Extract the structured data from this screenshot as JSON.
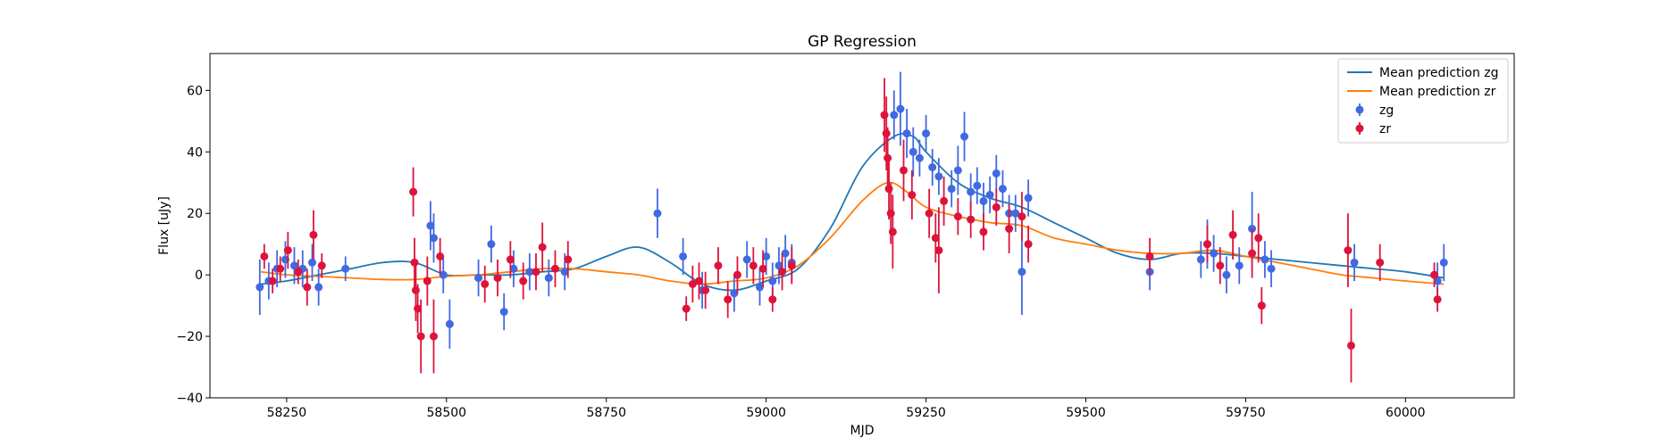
{
  "chart_data": {
    "type": "scatter",
    "title": "GP Regression",
    "xlabel": "MJD",
    "ylabel": "Flux [uJy]",
    "xlim": [
      58130,
      60170
    ],
    "ylim": [
      -40,
      72
    ],
    "xticks": [
      58250,
      58500,
      58750,
      59000,
      59250,
      59500,
      59750,
      60000
    ],
    "yticks": [
      -40,
      -20,
      0,
      20,
      40,
      60
    ],
    "legend_position": "top-right",
    "legend": [
      {
        "label": "Mean prediction zg",
        "kind": "line",
        "color": "#1f77b4"
      },
      {
        "label": "Mean prediction zr",
        "kind": "line",
        "color": "#ff7f0e"
      },
      {
        "label": "zg",
        "kind": "errorbar",
        "color": "#4169e1"
      },
      {
        "label": "zr",
        "kind": "errorbar",
        "color": "#dc143c"
      }
    ],
    "lines": [
      {
        "name": "Mean prediction zg",
        "color": "#1f77b4",
        "x": [
          58210,
          58250,
          58300,
          58350,
          58400,
          58450,
          58500,
          58550,
          58600,
          58650,
          58700,
          58750,
          58800,
          58850,
          58900,
          58950,
          59000,
          59050,
          59100,
          59150,
          59200,
          59230,
          59250,
          59300,
          59350,
          59400,
          59450,
          59500,
          59550,
          59600,
          59650,
          59700,
          59750,
          59800,
          59850,
          59900,
          59950,
          60000,
          60060
        ],
        "y": [
          -3,
          -2,
          0,
          2,
          4,
          4,
          0,
          0,
          0,
          1,
          2,
          6,
          9,
          4,
          -3,
          -5,
          -2,
          2,
          15,
          35,
          45,
          45,
          40,
          30,
          25,
          22,
          17,
          12,
          7,
          5,
          7,
          7,
          6,
          5,
          4,
          3,
          2,
          1,
          -1
        ]
      },
      {
        "name": "Mean prediction zr",
        "color": "#ff7f0e",
        "x": [
          58210,
          58250,
          58300,
          58350,
          58400,
          58450,
          58500,
          58550,
          58600,
          58650,
          58700,
          58750,
          58800,
          58850,
          58900,
          58950,
          59000,
          59050,
          59100,
          59150,
          59190,
          59220,
          59250,
          59300,
          59350,
          59400,
          59450,
          59500,
          59550,
          59600,
          59650,
          59700,
          59750,
          59800,
          59850,
          59900,
          59950,
          60000,
          60060
        ],
        "y": [
          1,
          0,
          -0.5,
          -1,
          -1.5,
          -1.5,
          -0.5,
          0,
          1,
          2,
          2,
          1,
          0,
          -2,
          -3,
          -2,
          -1,
          3,
          12,
          24,
          30,
          27,
          22,
          19,
          17,
          16,
          12,
          10,
          8,
          7,
          7,
          8,
          6,
          4,
          2,
          0,
          -1,
          -2,
          -3
        ]
      }
    ],
    "series": [
      {
        "name": "zg",
        "color": "#4169e1",
        "x": [
          58208,
          58222,
          58235,
          58248,
          58262,
          58275,
          58290,
          58300,
          58342,
          58475,
          58480,
          58495,
          58505,
          58550,
          58570,
          58590,
          58605,
          58630,
          58660,
          58685,
          58830,
          58870,
          58900,
          58950,
          58970,
          58990,
          59000,
          59010,
          59020,
          59030,
          59040,
          59200,
          59210,
          59220,
          59230,
          59240,
          59250,
          59260,
          59270,
          59290,
          59300,
          59310,
          59320,
          59330,
          59340,
          59350,
          59360,
          59370,
          59380,
          59390,
          59400,
          59410,
          59600,
          59680,
          59690,
          59700,
          59720,
          59740,
          59760,
          59780,
          59790,
          59920,
          60050,
          60060
        ],
        "y": [
          -4,
          -2,
          2,
          5,
          3,
          2,
          4,
          -4,
          2,
          16,
          12,
          0,
          -16,
          -1,
          10,
          -12,
          2,
          1,
          -1,
          1,
          20,
          6,
          -5,
          -6,
          5,
          -4,
          6,
          -2,
          3,
          7,
          4,
          52,
          54,
          46,
          40,
          38,
          46,
          35,
          32,
          28,
          34,
          45,
          27,
          29,
          24,
          26,
          33,
          28,
          20,
          20,
          1,
          25,
          1,
          5,
          10,
          7,
          0,
          3,
          15,
          5,
          2,
          4,
          -2,
          4
        ],
        "err": [
          9,
          6,
          6,
          6,
          6,
          6,
          6,
          6,
          4,
          8,
          8,
          6,
          8,
          6,
          6,
          6,
          6,
          6,
          6,
          6,
          8,
          6,
          6,
          6,
          6,
          6,
          6,
          6,
          6,
          6,
          6,
          8,
          12,
          8,
          8,
          6,
          6,
          6,
          6,
          6,
          8,
          8,
          6,
          6,
          6,
          6,
          6,
          6,
          6,
          6,
          14,
          6,
          6,
          6,
          8,
          6,
          6,
          6,
          12,
          6,
          6,
          6,
          6,
          6
        ]
      },
      {
        "name": "zr",
        "color": "#dc143c",
        "x": [
          58215,
          58228,
          58240,
          58252,
          58268,
          58282,
          58292,
          58305,
          58448,
          58450,
          58452,
          58455,
          58460,
          58470,
          58480,
          58490,
          58560,
          58580,
          58600,
          58620,
          58640,
          58650,
          58670,
          58690,
          58875,
          58885,
          58895,
          58905,
          58925,
          58940,
          58955,
          58980,
          58995,
          59010,
          59025,
          59040,
          59185,
          59188,
          59190,
          59192,
          59195,
          59198,
          59215,
          59228,
          59255,
          59265,
          59270,
          59278,
          59300,
          59320,
          59340,
          59360,
          59380,
          59400,
          59410,
          59600,
          59690,
          59710,
          59730,
          59760,
          59770,
          59775,
          59910,
          59915,
          59960,
          60045,
          60050
        ],
        "y": [
          6,
          -2,
          2,
          8,
          1,
          -4,
          13,
          3,
          27,
          4,
          -5,
          -11,
          -20,
          -2,
          -20,
          6,
          -3,
          -1,
          5,
          -2,
          1,
          9,
          2,
          5,
          -11,
          -3,
          -2,
          -5,
          3,
          -8,
          0,
          3,
          2,
          -8,
          1,
          3,
          52,
          46,
          38,
          28,
          20,
          14,
          34,
          26,
          20,
          12,
          8,
          24,
          19,
          18,
          14,
          22,
          15,
          19,
          10,
          6,
          10,
          3,
          13,
          7,
          12,
          -10,
          8,
          -23,
          4,
          0,
          -8
        ],
        "err": [
          4,
          4,
          4,
          6,
          4,
          6,
          8,
          4,
          8,
          8,
          10,
          8,
          12,
          8,
          12,
          6,
          6,
          6,
          6,
          6,
          6,
          8,
          6,
          6,
          4,
          6,
          6,
          6,
          6,
          6,
          6,
          6,
          6,
          4,
          6,
          6,
          12,
          12,
          10,
          10,
          10,
          12,
          10,
          8,
          8,
          8,
          14,
          8,
          6,
          6,
          6,
          6,
          8,
          8,
          6,
          6,
          6,
          6,
          8,
          8,
          8,
          6,
          12,
          12,
          6,
          4,
          4
        ]
      }
    ]
  }
}
